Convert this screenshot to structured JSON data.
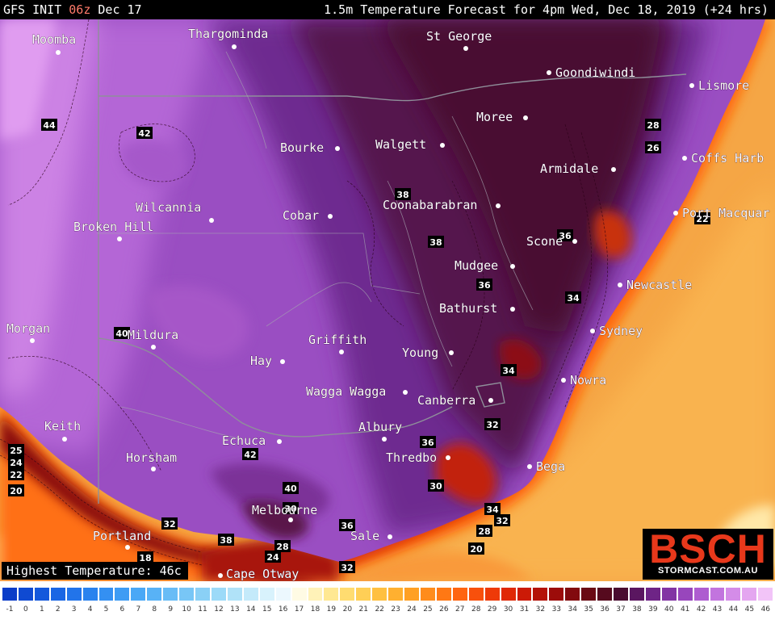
{
  "header": {
    "left_prefix": "GFS INIT ",
    "left_highlight": "06z",
    "left_suffix": " Dec 17",
    "title": "1.5m Temperature Forecast for 4pm Wed, Dec 18, 2019 (+24 hrs)"
  },
  "highest": "Highest Temperature: 46c",
  "logo": {
    "text": "BSCH",
    "sub": "STORMCAST.COM.AU",
    "color": "#e8381b"
  },
  "cities": [
    {
      "id": "moomba",
      "name": "Moomba"
    },
    {
      "id": "thargomindah",
      "name": "Thargominda"
    },
    {
      "id": "st-george",
      "name": "St George"
    },
    {
      "id": "goondiwindi",
      "name": "Goondiwindi"
    },
    {
      "id": "lismore",
      "name": "Lismore"
    },
    {
      "id": "moree",
      "name": "Moree"
    },
    {
      "id": "bourke",
      "name": "Bourke"
    },
    {
      "id": "walgett",
      "name": "Walgett"
    },
    {
      "id": "coffs-harbour",
      "name": "Coffs Harb"
    },
    {
      "id": "armidale",
      "name": "Armidale"
    },
    {
      "id": "wilcannia",
      "name": "Wilcannia"
    },
    {
      "id": "coonabarabran",
      "name": "Coonabarabran"
    },
    {
      "id": "cobar",
      "name": "Cobar"
    },
    {
      "id": "port-macquarie",
      "name": "Port Macquar"
    },
    {
      "id": "broken-hill",
      "name": "Broken Hill"
    },
    {
      "id": "scone",
      "name": "Scone"
    },
    {
      "id": "mudgee",
      "name": "Mudgee"
    },
    {
      "id": "newcastle",
      "name": "Newcastle"
    },
    {
      "id": "bathurst",
      "name": "Bathurst"
    },
    {
      "id": "morgan",
      "name": "Morgan"
    },
    {
      "id": "mildura",
      "name": "Mildura"
    },
    {
      "id": "sydney",
      "name": "Sydney"
    },
    {
      "id": "griffith",
      "name": "Griffith"
    },
    {
      "id": "hay",
      "name": "Hay"
    },
    {
      "id": "young",
      "name": "Young"
    },
    {
      "id": "nowra",
      "name": "Nowra"
    },
    {
      "id": "wagga-wagga",
      "name": "Wagga Wagga"
    },
    {
      "id": "canberra",
      "name": "Canberra"
    },
    {
      "id": "keith",
      "name": "Keith"
    },
    {
      "id": "albury",
      "name": "Albury"
    },
    {
      "id": "echuca",
      "name": "Echuca"
    },
    {
      "id": "horsham",
      "name": "Horsham"
    },
    {
      "id": "thredbo",
      "name": "Thredbo"
    },
    {
      "id": "bega",
      "name": "Bega"
    },
    {
      "id": "melbourne",
      "name": "Melbourne"
    },
    {
      "id": "sale",
      "name": "Sale"
    },
    {
      "id": "portland",
      "name": "Portland"
    },
    {
      "id": "cape-otway",
      "name": "Cape Otway"
    }
  ],
  "contour_labels": [
    "44",
    "42",
    "38",
    "38",
    "28",
    "26",
    "22",
    "36",
    "34",
    "36",
    "34",
    "40",
    "32",
    "36",
    "42",
    "40",
    "30",
    "25",
    "24",
    "22",
    "20",
    "34",
    "32",
    "28",
    "30",
    "36",
    "32",
    "38",
    "28",
    "24",
    "18",
    "20",
    "32"
  ],
  "legend": {
    "values": [
      "-1",
      "0",
      "1",
      "2",
      "3",
      "4",
      "5",
      "6",
      "7",
      "8",
      "9",
      "10",
      "11",
      "12",
      "13",
      "14",
      "15",
      "16",
      "17",
      "18",
      "19",
      "20",
      "21",
      "22",
      "23",
      "24",
      "25",
      "26",
      "27",
      "28",
      "29",
      "30",
      "31",
      "32",
      "33",
      "34",
      "35",
      "36",
      "37",
      "38",
      "39",
      "40",
      "41",
      "42",
      "43",
      "44",
      "45",
      "46"
    ],
    "colors": [
      "#0a3cc8",
      "#0f4ad2",
      "#1458dc",
      "#1a66e4",
      "#2274ea",
      "#2a82ee",
      "#3490f2",
      "#3e9cf4",
      "#4aa8f6",
      "#58b2f6",
      "#68bcf6",
      "#78c6f6",
      "#8ad0f6",
      "#9cdaf8",
      "#b0e2f8",
      "#c4eafa",
      "#d8f2fc",
      "#ecf8fe",
      "#fffbe4",
      "#fff2b8",
      "#ffe892",
      "#ffdc70",
      "#ffcf56",
      "#ffc040",
      "#ffb030",
      "#ffa024",
      "#ff8c1c",
      "#ff7814",
      "#ff6410",
      "#f8500c",
      "#ee3a08",
      "#e02806",
      "#cc1a06",
      "#b41208",
      "#9c0c0a",
      "#820a0e",
      "#6a0a14",
      "#560a1e",
      "#4a0c30",
      "#5a1660",
      "#6e2486",
      "#8234a4",
      "#9846bc",
      "#ae5cd0",
      "#c274de",
      "#d48ce8",
      "#e4a6f0",
      "#f2c4f8"
    ]
  }
}
